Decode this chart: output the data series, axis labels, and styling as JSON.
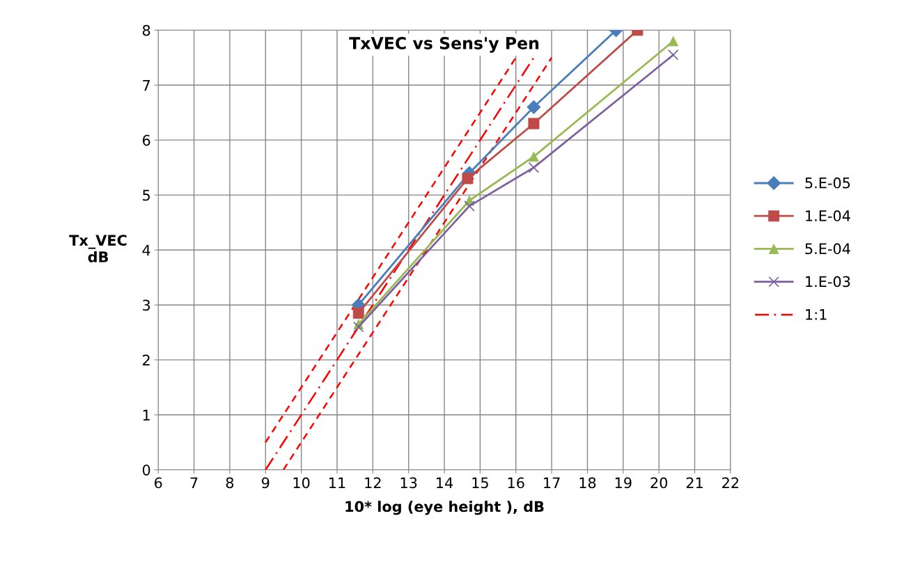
{
  "chart_data": {
    "type": "line",
    "title": "TxVEC vs Sens'y Pen",
    "xlabel": "10* log (eye height ), dB",
    "ylabel": "Tx_VEC\ndB",
    "xlim": [
      6,
      22
    ],
    "xticks": [
      6,
      7,
      8,
      9,
      10,
      11,
      12,
      13,
      14,
      15,
      16,
      17,
      18,
      19,
      20,
      21,
      22
    ],
    "ylim": [
      0,
      8
    ],
    "yticks": [
      0,
      1,
      2,
      3,
      4,
      5,
      6,
      7,
      8
    ],
    "grid": true,
    "legend": "right",
    "series": [
      {
        "name": "5.E-05",
        "color": "#4a7ebb",
        "marker": "diamond",
        "x": [
          11.6,
          14.7,
          16.5,
          18.8
        ],
        "values": [
          3.0,
          5.4,
          6.6,
          8.0
        ]
      },
      {
        "name": "1.E-04",
        "color": "#be4b48",
        "marker": "square",
        "x": [
          11.6,
          14.65,
          16.5,
          19.4
        ],
        "values": [
          2.85,
          5.3,
          6.3,
          8.0
        ]
      },
      {
        "name": "5.E-04",
        "color": "#98b954",
        "marker": "triangle",
        "x": [
          11.6,
          14.7,
          16.5,
          20.4
        ],
        "values": [
          2.65,
          4.9,
          5.7,
          7.8
        ]
      },
      {
        "name": "1.E-03",
        "color": "#7d60a0",
        "marker": "cross",
        "x": [
          11.6,
          14.7,
          16.5,
          20.4
        ],
        "values": [
          2.6,
          4.8,
          5.5,
          7.55
        ]
      },
      {
        "name": "1:1",
        "color": "#ff0000",
        "marker": "none",
        "line_style": "dashdot",
        "x": [
          9,
          16.5
        ],
        "values": [
          0,
          7.5
        ]
      },
      {
        "color": "#ff0000",
        "marker": "none",
        "line_style": "dashed",
        "x": [
          9,
          16
        ],
        "values": [
          0.5,
          7.5
        ]
      },
      {
        "color": "#ff0000",
        "marker": "none",
        "line_style": "dashed",
        "x": [
          9.5,
          17
        ],
        "values": [
          0,
          7.5
        ]
      }
    ]
  }
}
